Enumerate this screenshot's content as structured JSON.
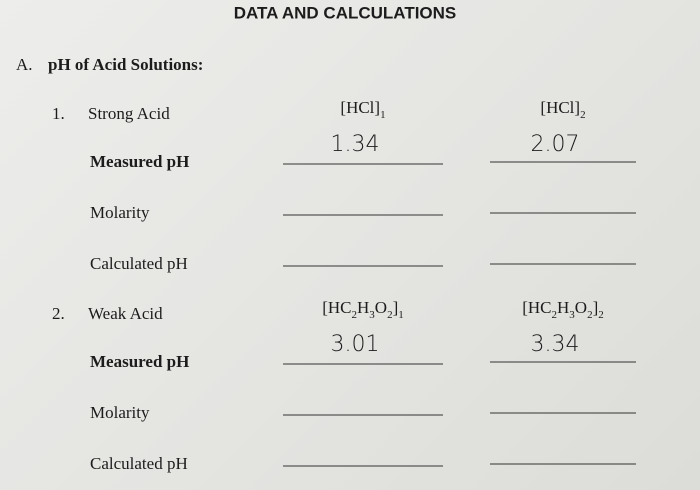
{
  "header": {
    "title": "DATA AND CALCULATIONS"
  },
  "section": {
    "label": "A.",
    "title": "pH of Acid Solutions:"
  },
  "parts": [
    {
      "number": "1.",
      "name": "Strong Acid",
      "columns": [
        [
          "[HCl]",
          "1"
        ],
        [
          "[HCl]",
          "2"
        ]
      ],
      "rows": [
        {
          "label": "Measured pH",
          "entries": [
            "1.34",
            "2.07"
          ]
        },
        {
          "label": "Molarity"
        },
        {
          "label": "Calculated pH"
        }
      ]
    },
    {
      "number": "2.",
      "name": "Weak Acid",
      "columns": [
        [
          "[HC",
          "2",
          "H",
          "3",
          "O",
          "2",
          "]",
          "1"
        ],
        [
          "[HC",
          "2",
          "H",
          "3",
          "O",
          "2",
          "]",
          "2"
        ]
      ],
      "rows": [
        {
          "label": "Measured pH",
          "entries": [
            "3.01",
            "3.34"
          ]
        },
        {
          "label": "Molarity"
        },
        {
          "label": "Calculated pH"
        }
      ]
    }
  ]
}
